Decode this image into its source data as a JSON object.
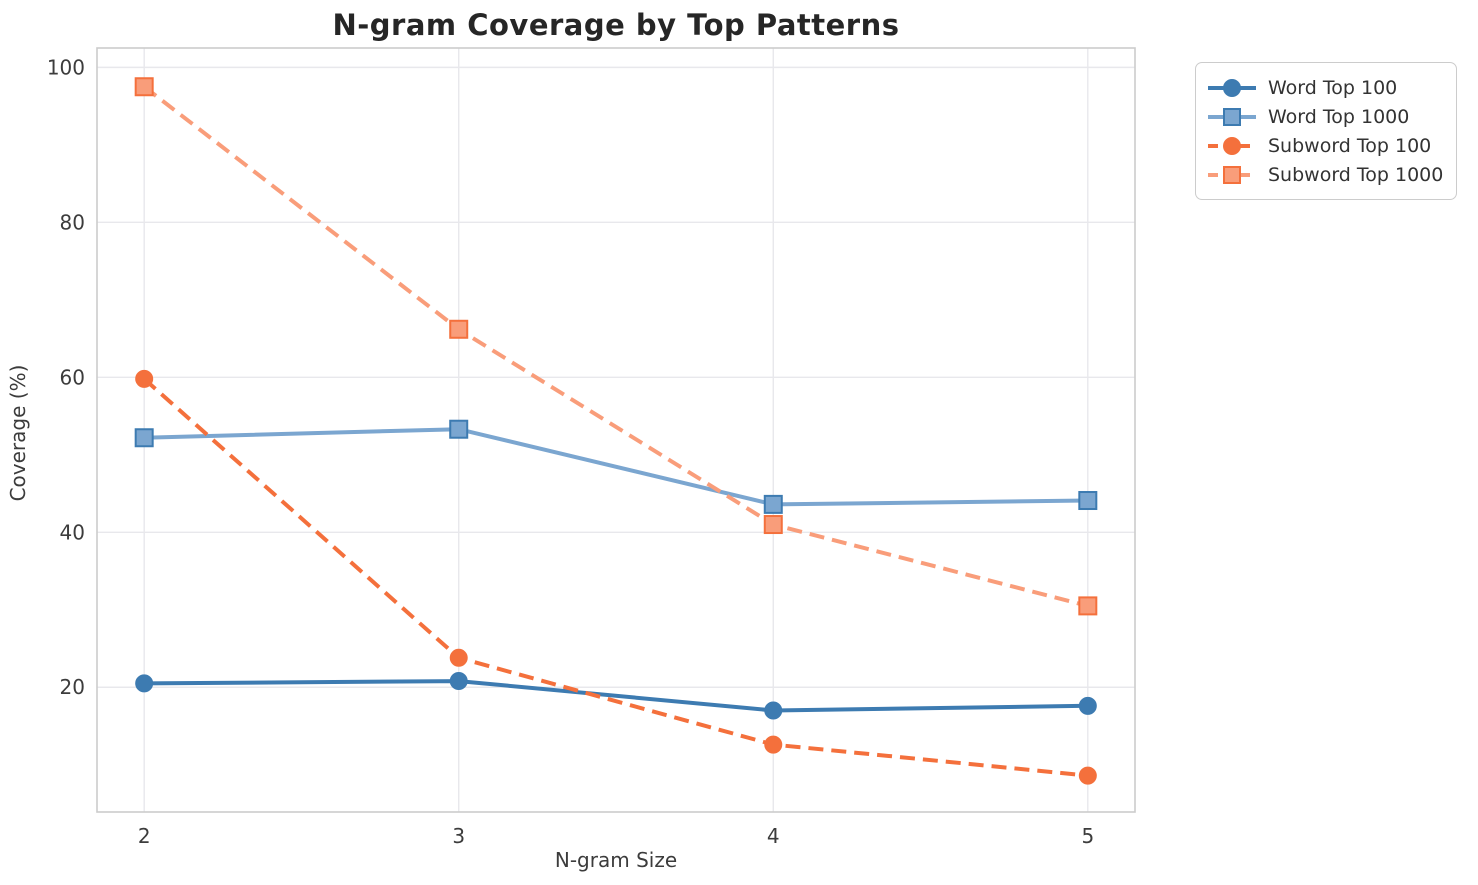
{
  "figure": {
    "kind": "matplotlib-style line chart",
    "background": "#ffffff"
  },
  "chart_data": {
    "type": "line",
    "title": "N-gram Coverage by Top Patterns",
    "xlabel": "N-gram Size",
    "ylabel": "Coverage (%)",
    "x": [
      2,
      3,
      4,
      5
    ],
    "x_ticks": [
      "2",
      "3",
      "4",
      "5"
    ],
    "y_ticks": [
      20,
      40,
      60,
      80,
      100
    ],
    "xlim": [
      1.85,
      5.15
    ],
    "ylim": [
      3.9,
      102.5
    ],
    "grid": true,
    "legend_position": "outside upper right",
    "series": [
      {
        "name": "Word Top 100",
        "marker": "circle",
        "line_style": "solid",
        "color": "#3d7bb1",
        "edge_color": "#3d7bb1",
        "values": [
          20.5,
          20.8,
          17.0,
          17.6
        ]
      },
      {
        "name": "Word Top 1000",
        "marker": "square",
        "line_style": "solid",
        "color": "#7ba6d0",
        "edge_color": "#3d7bb1",
        "values": [
          52.2,
          53.3,
          43.6,
          44.1
        ]
      },
      {
        "name": "Subword Top 100",
        "marker": "circle",
        "line_style": "dashed",
        "color": "#f4703c",
        "edge_color": "#f4703c",
        "values": [
          59.8,
          23.8,
          12.6,
          8.6
        ]
      },
      {
        "name": "Subword Top 1000",
        "marker": "square",
        "line_style": "dashed",
        "color": "#f99d7a",
        "edge_color": "#f4703c",
        "values": [
          97.5,
          66.2,
          41.0,
          30.5
        ]
      }
    ],
    "style": {
      "grid_color": "#e8e8ec",
      "spine_color": "#cccccc",
      "tick_label_color": "#3c3c3c",
      "title_color": "#262626",
      "legend_text_color": "#333333",
      "line_width": 4,
      "dash_pattern": "15 8"
    }
  }
}
